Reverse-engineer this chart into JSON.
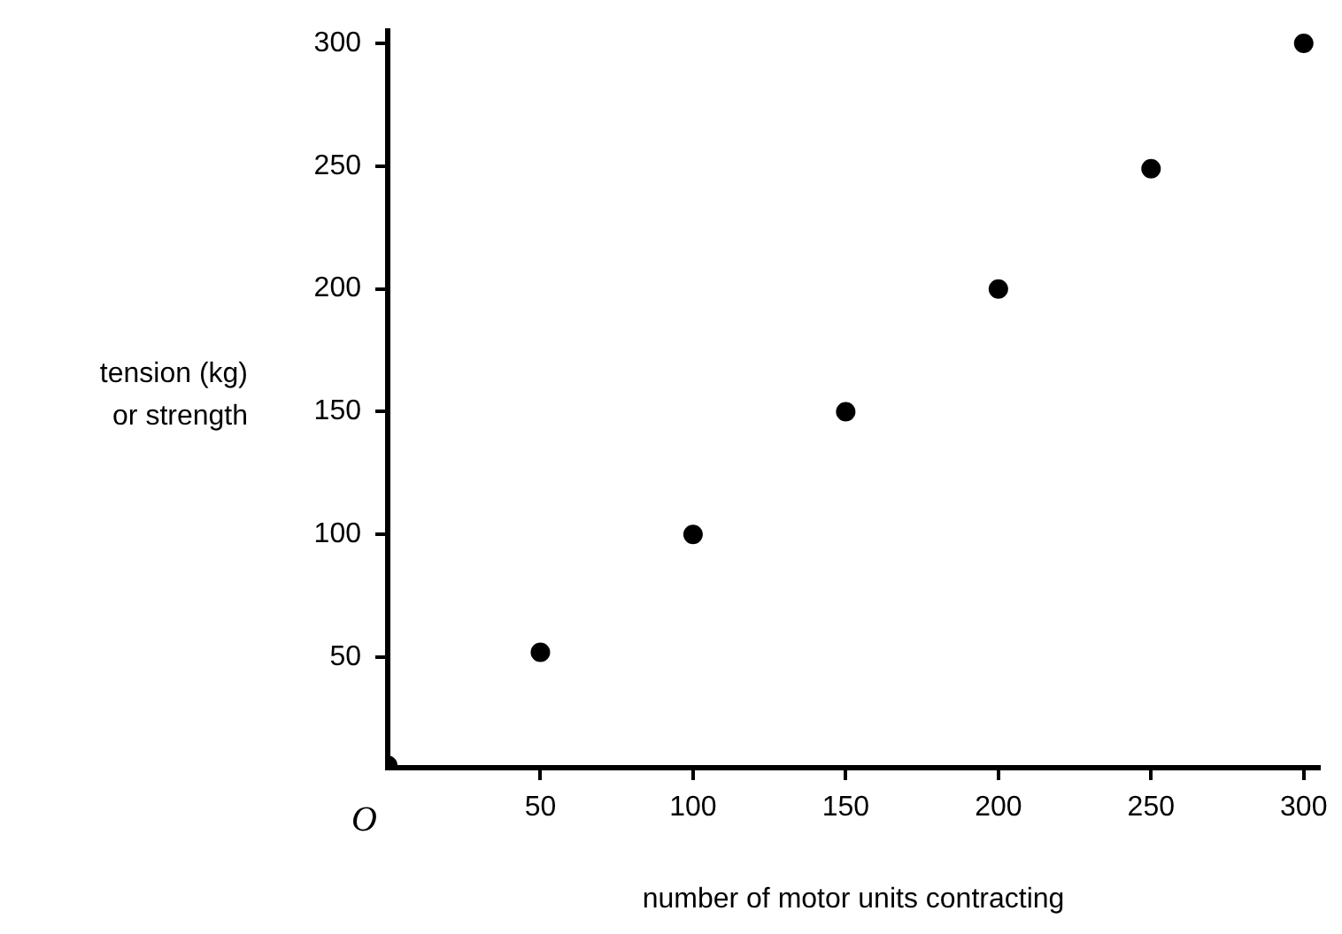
{
  "chart_data": {
    "type": "scatter",
    "xlabel": "number of motor units contracting",
    "ylabel": "tension (kg)\nor strength",
    "annotations": [
      "O"
    ],
    "x": [
      0,
      50,
      100,
      150,
      200,
      250,
      300
    ],
    "series": [
      {
        "color": "#000000",
        "values": [
          6,
          52,
          100,
          150,
          200,
          249,
          300
        ]
      }
    ],
    "xlim": [
      0,
      305
    ],
    "ylim": [
      5,
      305
    ],
    "xticks": [
      50,
      100,
      150,
      200,
      250,
      300
    ],
    "yticks": [
      50,
      100,
      150,
      200,
      250,
      300
    ],
    "grid": false,
    "legend": false,
    "marker": "circle"
  }
}
